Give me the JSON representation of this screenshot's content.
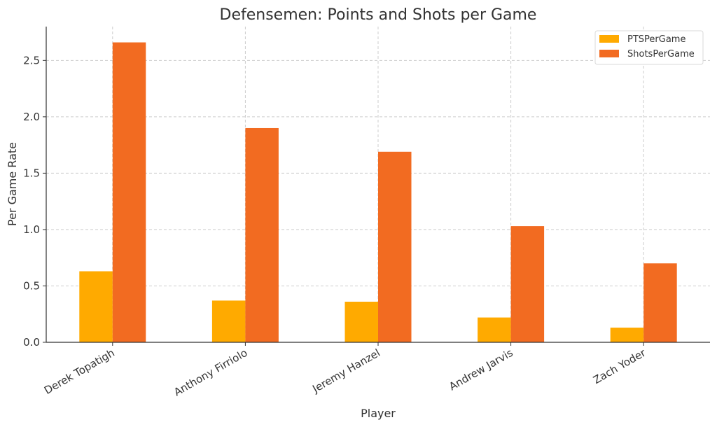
{
  "chart_data": {
    "type": "bar",
    "title": "Defensemen: Points and Shots per Game",
    "xlabel": "Player",
    "ylabel": "Per Game Rate",
    "categories": [
      "Derek Topatigh",
      "Anthony Firriolo",
      "Jeremy Hanzel",
      "Andrew Jarvis",
      "Zach Yoder"
    ],
    "series": [
      {
        "name": "PTSPerGame",
        "color": "#FFAA00",
        "values": [
          0.63,
          0.37,
          0.36,
          0.22,
          0.13
        ]
      },
      {
        "name": "ShotsPerGame",
        "color": "#F26B21",
        "values": [
          2.66,
          1.9,
          1.69,
          1.03,
          0.7
        ]
      }
    ],
    "ylim": [
      0,
      2.8
    ],
    "yticks": [
      0.0,
      0.5,
      1.0,
      1.5,
      2.0,
      2.5
    ],
    "ytick_labels": [
      "0.0",
      "0.5",
      "1.0",
      "1.5",
      "2.0",
      "2.5"
    ],
    "grid": true,
    "legend_position": "top-right"
  }
}
